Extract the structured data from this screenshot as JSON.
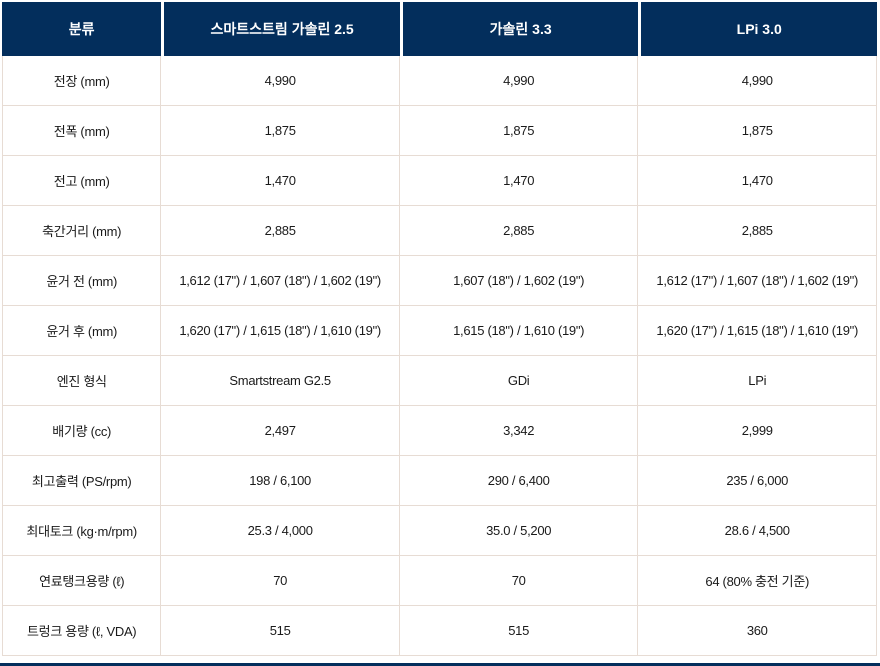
{
  "colors": {
    "header_background": "#032e5c",
    "header_text": "#ffffff",
    "body_text": "#1a1a1a",
    "grid_border": "#e7dcd4",
    "bottom_bar": "#032e5c"
  },
  "chart_data": {
    "type": "table",
    "title": "",
    "columns": [
      "분류",
      "스마트스트림 가솔린 2.5",
      "가솔린 3.3",
      "LPi 3.0"
    ],
    "rows": [
      {
        "label": "전장 (mm)",
        "values": [
          "4,990",
          "4,990",
          "4,990"
        ]
      },
      {
        "label": "전폭 (mm)",
        "values": [
          "1,875",
          "1,875",
          "1,875"
        ]
      },
      {
        "label": "전고 (mm)",
        "values": [
          "1,470",
          "1,470",
          "1,470"
        ]
      },
      {
        "label": "축간거리 (mm)",
        "values": [
          "2,885",
          "2,885",
          "2,885"
        ]
      },
      {
        "label": "윤거 전 (mm)",
        "values": [
          "1,612 (17\") / 1,607 (18\") / 1,602 (19\")",
          "1,607 (18\") / 1,602 (19\")",
          "1,612 (17\") / 1,607 (18\") / 1,602 (19\")"
        ]
      },
      {
        "label": "윤거 후 (mm)",
        "values": [
          "1,620 (17\") / 1,615 (18\") / 1,610 (19\")",
          "1,615 (18\") / 1,610 (19\")",
          "1,620 (17\") / 1,615 (18\") / 1,610 (19\")"
        ]
      },
      {
        "label": "엔진 형식",
        "values": [
          "Smartstream G2.5",
          "GDi",
          "LPi"
        ]
      },
      {
        "label": "배기량 (cc)",
        "values": [
          "2,497",
          "3,342",
          "2,999"
        ]
      },
      {
        "label": "최고출력 (PS/rpm)",
        "values": [
          "198 / 6,100",
          "290 / 6,400",
          "235 / 6,000"
        ]
      },
      {
        "label": "최대토크 (kg·m/rpm)",
        "values": [
          "25.3 / 4,000",
          "35.0 / 5,200",
          "28.6 / 4,500"
        ]
      },
      {
        "label": "연료탱크용량 (ℓ)",
        "values": [
          "70",
          "70",
          "64 (80% 충전 기준)"
        ]
      },
      {
        "label": "트렁크 용량 (ℓ, VDA)",
        "values": [
          "515",
          "515",
          "360"
        ]
      }
    ]
  }
}
